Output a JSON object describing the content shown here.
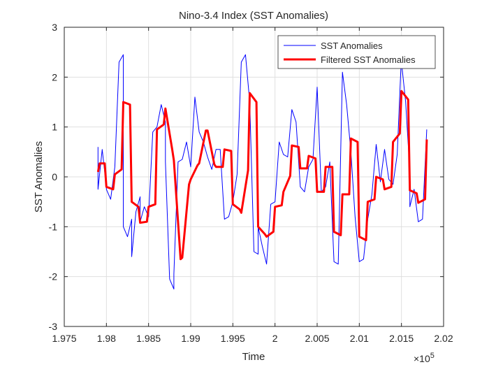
{
  "chart_data": {
    "type": "line",
    "title": "Nino-3.4 Index (SST Anomalies)",
    "xlabel": "Time",
    "ylabel": "SST Anomalies",
    "x_exponent_label": "×10",
    "x_exponent_power": "5",
    "xlim": [
      1.975,
      2.02
    ],
    "ylim": [
      -3,
      3
    ],
    "x_ticks": [
      1.975,
      1.98,
      1.985,
      1.99,
      1.995,
      2.0,
      2.005,
      2.01,
      2.015,
      2.02
    ],
    "x_tick_labels": [
      "1.975",
      "1.98",
      "1.985",
      "1.99",
      "1.995",
      "2",
      "2.005",
      "2.01",
      "2.015",
      "2.02"
    ],
    "y_ticks": [
      -3,
      -2,
      -1,
      0,
      1,
      2,
      3
    ],
    "y_tick_labels": [
      "-3",
      "-2",
      "-1",
      "0",
      "1",
      "2",
      "3"
    ],
    "grid": true,
    "legend_position": "top-right",
    "series": [
      {
        "name": "SST Anomalies",
        "color": "#0000ff",
        "x": [
          1.979,
          1.979,
          1.9795,
          1.98,
          1.98,
          1.9805,
          1.981,
          1.9815,
          1.982,
          1.982,
          1.9825,
          1.983,
          1.983,
          1.9835,
          1.984,
          1.984,
          1.9845,
          1.985,
          1.9855,
          1.986,
          1.9865,
          1.987,
          1.987,
          1.9875,
          1.988,
          1.988,
          1.9885,
          1.989,
          1.9895,
          1.99,
          1.9905,
          1.991,
          1.9915,
          1.992,
          1.9925,
          1.993,
          1.9935,
          1.994,
          1.9945,
          1.995,
          1.9955,
          1.996,
          1.9965,
          1.997,
          1.9975,
          1.998,
          1.998,
          1.9985,
          1.999,
          1.9995,
          2.0,
          2.0005,
          2.001,
          2.0015,
          2.002,
          2.0025,
          2.003,
          2.0035,
          2.004,
          2.0045,
          2.005,
          2.0055,
          2.006,
          2.0065,
          2.007,
          2.0075,
          2.008,
          2.0085,
          2.009,
          2.0095,
          2.01,
          2.0105,
          2.011,
          2.0115,
          2.012,
          2.0125,
          2.013,
          2.0135,
          2.014,
          2.0145,
          2.015,
          2.015,
          2.0155,
          2.016,
          2.016,
          2.0165,
          2.017,
          2.0175,
          2.018
        ],
        "y": [
          0.6,
          -0.25,
          0.55,
          -0.2,
          -0.25,
          -0.45,
          0.2,
          2.3,
          2.45,
          -1.0,
          -1.2,
          -0.85,
          -1.6,
          -0.7,
          -0.4,
          -0.9,
          -0.6,
          -0.8,
          0.9,
          1.0,
          1.45,
          1.1,
          0.3,
          -2.05,
          -2.25,
          -1.95,
          0.3,
          0.35,
          0.7,
          0.2,
          1.6,
          0.9,
          0.7,
          0.4,
          0.15,
          0.55,
          0.55,
          -0.85,
          -0.8,
          -0.5,
          0.05,
          2.3,
          2.45,
          1.5,
          -1.5,
          -1.55,
          -1.0,
          -1.4,
          -1.75,
          -0.55,
          -0.5,
          0.7,
          0.45,
          0.4,
          1.35,
          1.1,
          -0.2,
          -0.3,
          0.2,
          0.35,
          1.8,
          -0.3,
          -0.2,
          0.3,
          -1.7,
          -1.75,
          2.1,
          1.45,
          0.5,
          -0.8,
          -1.7,
          -1.65,
          -0.85,
          -0.35,
          0.65,
          -0.1,
          0.55,
          -0.05,
          -0.15,
          0.45,
          2.45,
          2.3,
          1.5,
          0.1,
          -0.6,
          -0.25,
          -0.9,
          -0.85,
          0.95
        ]
      },
      {
        "name": "Filtered SST Anomalies",
        "color": "#ff0000",
        "x": [
          1.979,
          1.9792,
          1.9798,
          1.98,
          1.9808,
          1.981,
          1.9818,
          1.982,
          1.9828,
          1.983,
          1.9838,
          1.984,
          1.9848,
          1.985,
          1.9858,
          1.986,
          1.9868,
          1.987,
          1.9878,
          1.988,
          1.9888,
          1.989,
          1.9898,
          1.99,
          1.9908,
          1.991,
          1.9918,
          1.992,
          1.9928,
          1.993,
          1.9938,
          1.994,
          1.9948,
          1.995,
          1.9958,
          1.996,
          1.9968,
          1.997,
          1.9978,
          1.998,
          1.9988,
          1.999,
          1.9998,
          2.0,
          2.0008,
          2.001,
          2.0018,
          2.002,
          2.0028,
          2.003,
          2.0038,
          2.004,
          2.0048,
          2.005,
          2.0058,
          2.006,
          2.0068,
          2.007,
          2.0078,
          2.008,
          2.0088,
          2.009,
          2.0098,
          2.01,
          2.0108,
          2.011,
          2.0118,
          2.012,
          2.0128,
          2.013,
          2.0138,
          2.014,
          2.0148,
          2.015,
          2.0158,
          2.016,
          2.0168,
          2.017,
          2.0178,
          2.018
        ],
        "y": [
          0.1,
          0.27,
          0.27,
          -0.2,
          -0.25,
          0.05,
          0.15,
          1.5,
          1.45,
          -0.5,
          -0.6,
          -0.92,
          -0.9,
          -0.6,
          -0.55,
          0.95,
          1.05,
          1.37,
          0.55,
          0.33,
          -1.65,
          -1.62,
          -0.15,
          -0.05,
          0.23,
          0.27,
          0.93,
          0.93,
          0.25,
          0.2,
          0.2,
          0.55,
          0.52,
          -0.55,
          -0.65,
          -0.72,
          0.13,
          1.68,
          1.5,
          -1.0,
          -1.15,
          -1.2,
          -1.1,
          -0.6,
          -0.57,
          -0.3,
          0.02,
          0.63,
          0.6,
          0.17,
          0.17,
          0.42,
          0.37,
          -0.3,
          -0.3,
          0.2,
          0.2,
          -1.1,
          -1.17,
          -0.35,
          -0.35,
          0.77,
          0.7,
          -1.2,
          -1.27,
          -0.5,
          -0.45,
          0.0,
          -0.05,
          -0.25,
          -0.2,
          0.7,
          0.87,
          1.72,
          1.55,
          -0.27,
          -0.33,
          -0.52,
          -0.45,
          0.75
        ]
      }
    ]
  }
}
